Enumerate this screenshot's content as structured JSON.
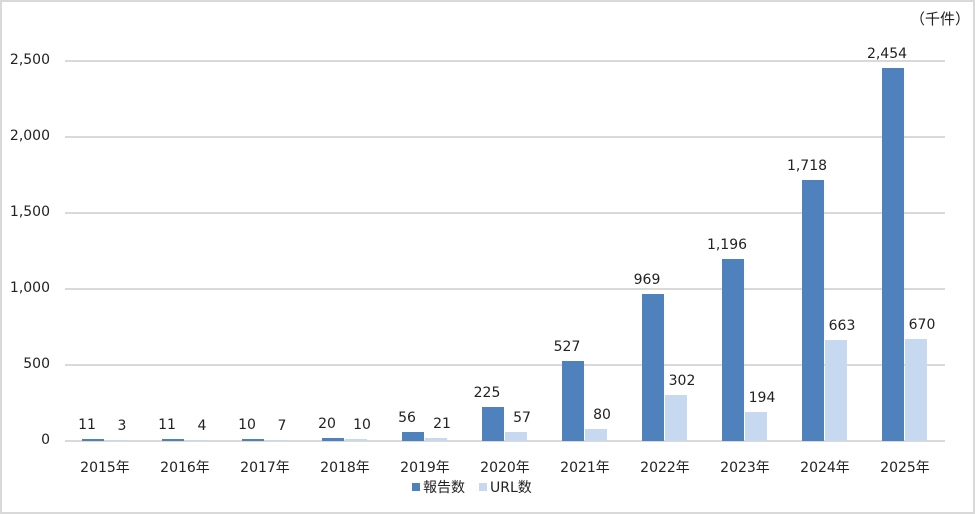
{
  "chart_data": {
    "type": "bar",
    "title": "",
    "unit_label": "（千件）",
    "xlabel": "",
    "ylabel": "",
    "ylim": [
      0,
      2500
    ],
    "yticks": [
      "0",
      "500",
      "1,000",
      "1,500",
      "2,000",
      "2,500"
    ],
    "grid": true,
    "legend_position": "bottom",
    "categories": [
      "2015年",
      "2016年",
      "2017年",
      "2018年",
      "2019年",
      "2020年",
      "2021年",
      "2022年",
      "2023年",
      "2024年",
      "2025年"
    ],
    "series": [
      {
        "name": "報告数",
        "color": "#4f81bd",
        "values": [
          11,
          11,
          10,
          20,
          56,
          225,
          527,
          969,
          1196,
          1718,
          2454
        ],
        "labels": [
          "11",
          "11",
          "10",
          "20",
          "56",
          "225",
          "527",
          "969",
          "1,196",
          "1,718",
          "2,454"
        ]
      },
      {
        "name": "URL数",
        "color": "#c6d9f0",
        "values": [
          3,
          4,
          7,
          10,
          21,
          57,
          80,
          302,
          194,
          663,
          670
        ],
        "labels": [
          "3",
          "4",
          "7",
          "10",
          "21",
          "57",
          "80",
          "302",
          "194",
          "663",
          "670"
        ]
      }
    ]
  }
}
